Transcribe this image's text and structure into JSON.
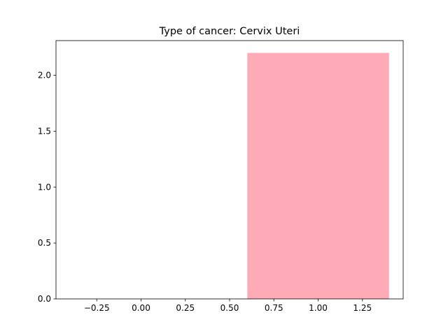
{
  "chart_data": {
    "type": "bar",
    "title": "Type of cancer: Cervix Uteri",
    "xlabel": "",
    "ylabel": "",
    "x": [
      1.0
    ],
    "values": [
      2.2
    ],
    "bar_width": 0.8,
    "bar_color": "#ffaab7",
    "xlim": [
      -0.48,
      1.48
    ],
    "ylim": [
      0,
      2.31
    ],
    "xticks": [
      -0.25,
      0.0,
      0.25,
      0.5,
      0.75,
      1.0,
      1.25
    ],
    "xtick_labels": [
      "−0.25",
      "0.00",
      "0.25",
      "0.50",
      "0.75",
      "1.00",
      "1.25"
    ],
    "yticks": [
      0.0,
      0.5,
      1.0,
      1.5,
      2.0
    ],
    "ytick_labels": [
      "0.0",
      "0.5",
      "1.0",
      "1.5",
      "2.0"
    ],
    "grid": false,
    "legend": "none"
  }
}
